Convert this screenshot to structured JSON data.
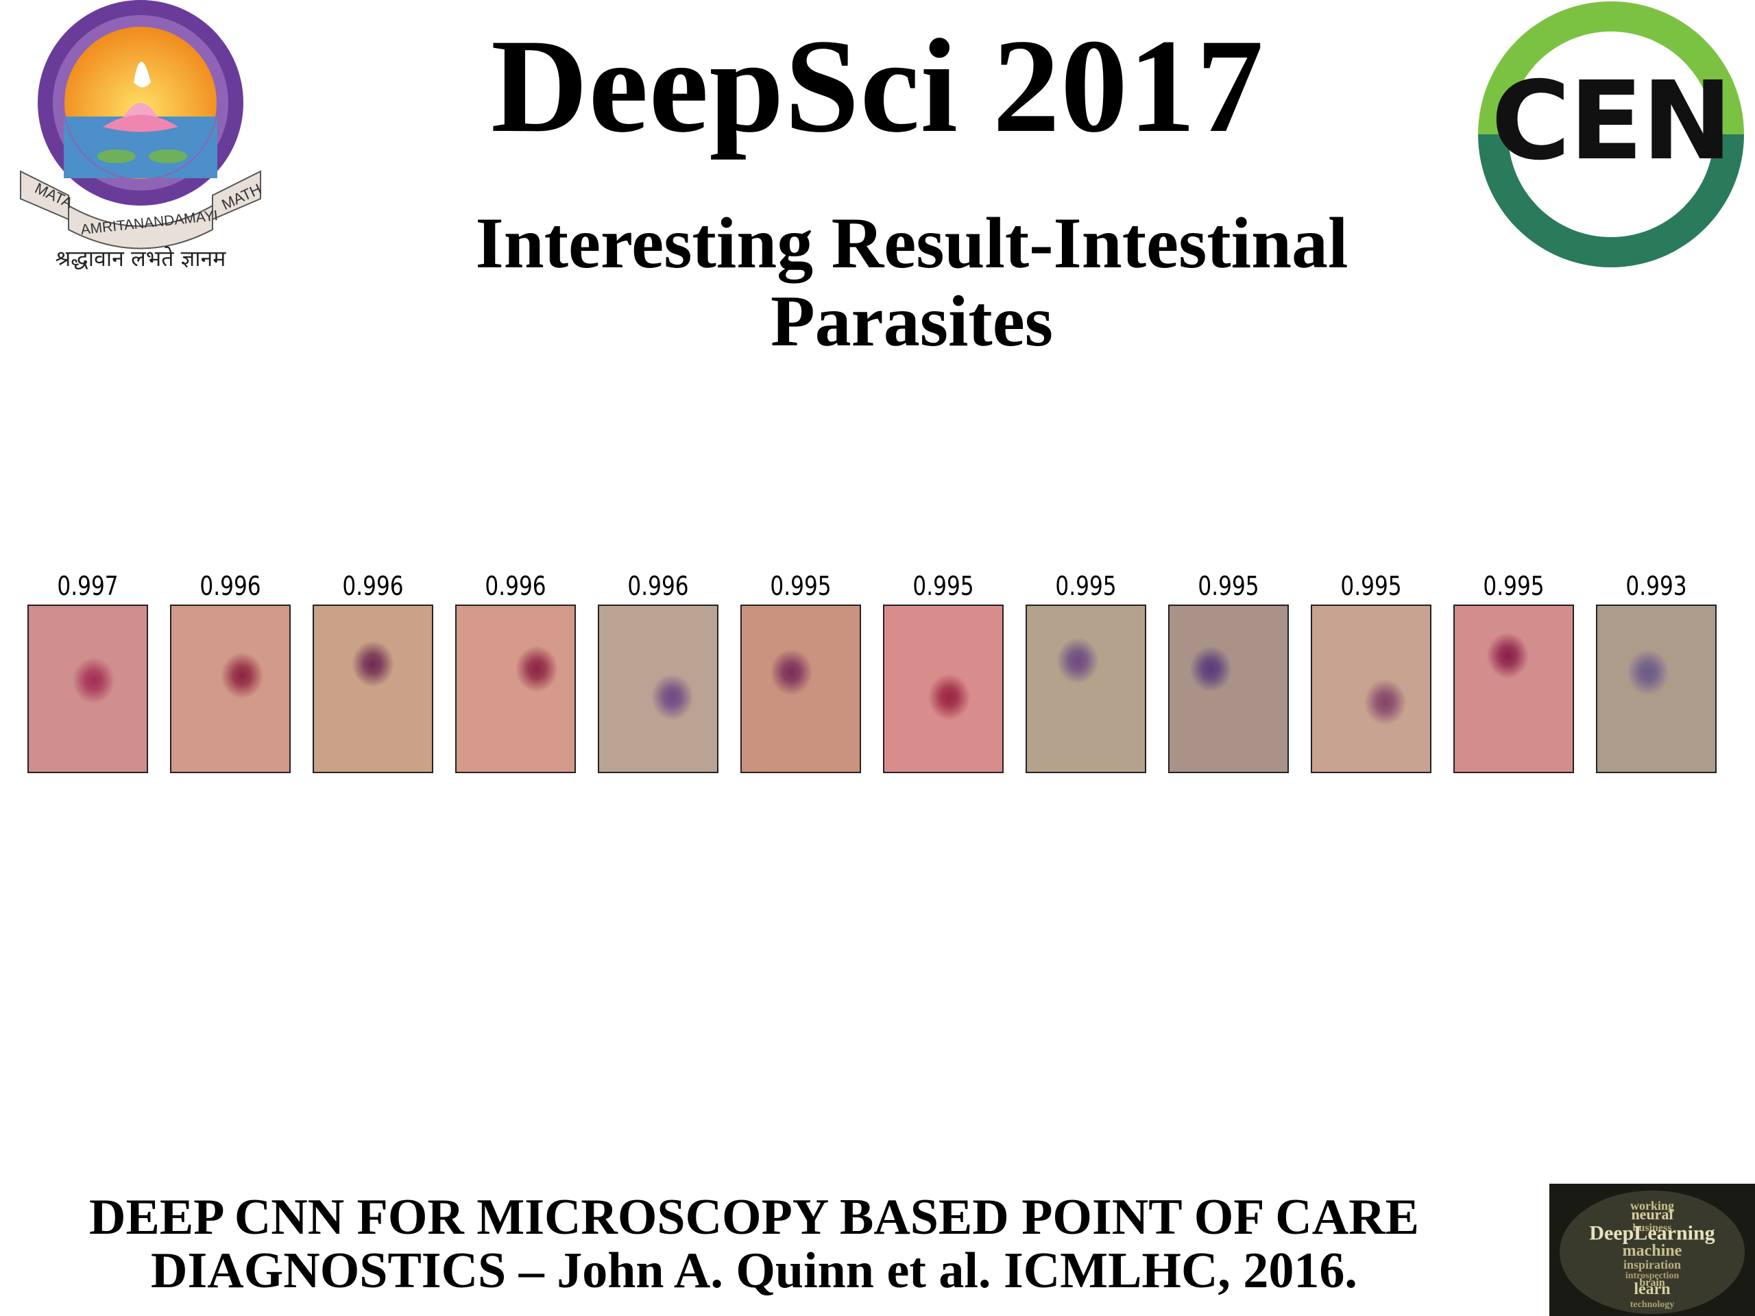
{
  "slide": {
    "title": "DeepSci 2017",
    "subtitle_line1": "Interesting Result-Intestinal",
    "subtitle_line2": "Parasites",
    "citation_line1": "DEEP CNN FOR MICROSCOPY BASED POINT OF CARE",
    "citation_line2": "DIAGNOSTICS – John A. Quinn et al. ICMLHC, 2016."
  },
  "logo_left": {
    "icon": "amrita-university-emblem",
    "ribbon_left": "MATA",
    "ribbon_center": "AMRITANANDAMAYI",
    "ribbon_right": "MATH",
    "motto": "श्रद्धावान लभते ज्ञानम"
  },
  "logo_right": {
    "icon": "cen-ring-logo",
    "text": "CEN",
    "colors": {
      "top": "#7cc242",
      "bottom": "#2a7a5c"
    }
  },
  "word_cloud": {
    "icon": "deep-learning-word-cloud",
    "words": [
      "working",
      "neural",
      "business",
      "DeepLearning",
      "machine",
      "inspiration",
      "introspection",
      "brain",
      "learn",
      "technology"
    ]
  },
  "patches": [
    {
      "score": "0.997",
      "bg": "#cf8f8e",
      "blob": "#a42f55"
    },
    {
      "score": "0.996",
      "bg": "#d29a88",
      "blob": "#8e2440"
    },
    {
      "score": "0.996",
      "bg": "#c9a287",
      "blob": "#6f2a52"
    },
    {
      "score": "0.996",
      "bg": "#d59a89",
      "blob": "#8d2344"
    },
    {
      "score": "0.996",
      "bg": "#b9a393",
      "blob": "#6b4a86"
    },
    {
      "score": "0.995",
      "bg": "#c99380",
      "blob": "#7a2e5a"
    },
    {
      "score": "0.995",
      "bg": "#d98c8c",
      "blob": "#9a2442"
    },
    {
      "score": "0.995",
      "bg": "#b5a28d",
      "blob": "#6b4a82"
    },
    {
      "score": "0.995",
      "bg": "#a99389",
      "blob": "#5a3a7a"
    },
    {
      "score": "0.995",
      "bg": "#c9a391",
      "blob": "#844469"
    },
    {
      "score": "0.995",
      "bg": "#d48d8d",
      "blob": "#8b1f4a"
    },
    {
      "score": "0.993",
      "bg": "#ad9c8c",
      "blob": "#6a588a"
    }
  ]
}
